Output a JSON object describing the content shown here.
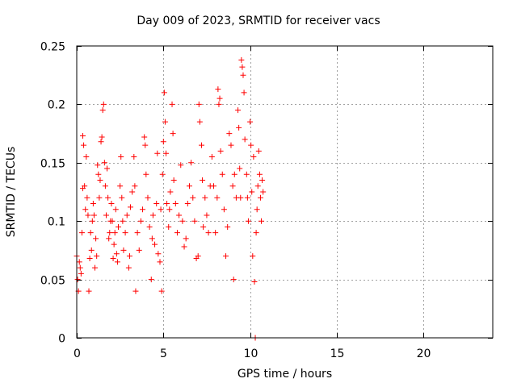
{
  "chart_data": {
    "type": "scatter",
    "title": "Day 009 of 2023, SRMTID for receiver vacs",
    "xlabel": "GPS time / hours",
    "ylabel": "SRMTID / TECUs",
    "xlim": [
      0,
      24
    ],
    "ylim": [
      0,
      0.25
    ],
    "xticks": [
      0,
      5,
      10,
      15,
      20
    ],
    "xtick_labels": [
      "0",
      "5",
      "10",
      "15",
      "20"
    ],
    "yticks": [
      0,
      0.05,
      0.1,
      0.15,
      0.2,
      0.25
    ],
    "ytick_labels": [
      "0",
      "0.05",
      "0.1",
      "0.15",
      "0.2",
      "0.25"
    ],
    "grid": true,
    "marker": "+",
    "series": [
      {
        "name": "SRMTID",
        "color": "#ff0000",
        "points": [
          [
            0.0,
            0.07
          ],
          [
            0.05,
            0.05
          ],
          [
            0.1,
            0.04
          ],
          [
            0.15,
            0.065
          ],
          [
            0.2,
            0.06
          ],
          [
            0.25,
            0.055
          ],
          [
            0.3,
            0.09
          ],
          [
            0.35,
            0.128
          ],
          [
            0.35,
            0.173
          ],
          [
            0.4,
            0.165
          ],
          [
            0.45,
            0.13
          ],
          [
            0.5,
            0.11
          ],
          [
            0.55,
            0.155
          ],
          [
            0.6,
            0.12
          ],
          [
            0.65,
            0.105
          ],
          [
            0.7,
            0.04
          ],
          [
            0.75,
            0.068
          ],
          [
            0.8,
            0.09
          ],
          [
            0.85,
            0.075
          ],
          [
            0.9,
            0.1
          ],
          [
            0.95,
            0.115
          ],
          [
            1.0,
            0.105
          ],
          [
            1.05,
            0.06
          ],
          [
            1.1,
            0.085
          ],
          [
            1.15,
            0.07
          ],
          [
            1.2,
            0.148
          ],
          [
            1.25,
            0.14
          ],
          [
            1.3,
            0.12
          ],
          [
            1.35,
            0.135
          ],
          [
            1.4,
            0.168
          ],
          [
            1.45,
            0.172
          ],
          [
            1.5,
            0.195
          ],
          [
            1.55,
            0.2
          ],
          [
            1.6,
            0.15
          ],
          [
            1.65,
            0.13
          ],
          [
            1.7,
            0.105
          ],
          [
            1.75,
            0.145
          ],
          [
            1.8,
            0.12
          ],
          [
            1.85,
            0.085
          ],
          [
            1.9,
            0.09
          ],
          [
            1.95,
            0.1
          ],
          [
            2.0,
            0.115
          ],
          [
            2.05,
            0.1
          ],
          [
            2.1,
            0.068
          ],
          [
            2.15,
            0.08
          ],
          [
            2.2,
            0.09
          ],
          [
            2.25,
            0.11
          ],
          [
            2.3,
            0.072
          ],
          [
            2.35,
            0.065
          ],
          [
            2.4,
            0.095
          ],
          [
            2.5,
            0.13
          ],
          [
            2.55,
            0.155
          ],
          [
            2.6,
            0.12
          ],
          [
            2.65,
            0.1
          ],
          [
            2.7,
            0.075
          ],
          [
            2.8,
            0.09
          ],
          [
            2.9,
            0.105
          ],
          [
            3.0,
            0.06
          ],
          [
            3.05,
            0.07
          ],
          [
            3.1,
            0.112
          ],
          [
            3.2,
            0.125
          ],
          [
            3.3,
            0.155
          ],
          [
            3.35,
            0.13
          ],
          [
            3.4,
            0.04
          ],
          [
            3.5,
            0.09
          ],
          [
            3.6,
            0.075
          ],
          [
            3.7,
            0.1
          ],
          [
            3.8,
            0.11
          ],
          [
            3.9,
            0.172
          ],
          [
            3.95,
            0.165
          ],
          [
            4.0,
            0.14
          ],
          [
            4.1,
            0.12
          ],
          [
            4.2,
            0.095
          ],
          [
            4.3,
            0.05
          ],
          [
            4.35,
            0.085
          ],
          [
            4.4,
            0.105
          ],
          [
            4.5,
            0.08
          ],
          [
            4.6,
            0.115
          ],
          [
            4.65,
            0.158
          ],
          [
            4.7,
            0.072
          ],
          [
            4.8,
            0.065
          ],
          [
            4.85,
            0.11
          ],
          [
            4.9,
            0.04
          ],
          [
            4.95,
            0.14
          ],
          [
            5.0,
            0.168
          ],
          [
            5.05,
            0.21
          ],
          [
            5.1,
            0.185
          ],
          [
            5.15,
            0.158
          ],
          [
            5.2,
            0.115
          ],
          [
            5.3,
            0.095
          ],
          [
            5.35,
            0.11
          ],
          [
            5.4,
            0.125
          ],
          [
            5.5,
            0.2
          ],
          [
            5.55,
            0.175
          ],
          [
            5.6,
            0.135
          ],
          [
            5.7,
            0.115
          ],
          [
            5.8,
            0.09
          ],
          [
            5.9,
            0.105
          ],
          [
            6.0,
            0.148
          ],
          [
            6.1,
            0.1
          ],
          [
            6.2,
            0.078
          ],
          [
            6.3,
            0.085
          ],
          [
            6.4,
            0.115
          ],
          [
            6.5,
            0.13
          ],
          [
            6.6,
            0.15
          ],
          [
            6.7,
            0.12
          ],
          [
            6.8,
            0.1
          ],
          [
            6.9,
            0.068
          ],
          [
            7.0,
            0.07
          ],
          [
            7.05,
            0.2
          ],
          [
            7.1,
            0.185
          ],
          [
            7.2,
            0.165
          ],
          [
            7.25,
            0.135
          ],
          [
            7.3,
            0.095
          ],
          [
            7.4,
            0.12
          ],
          [
            7.5,
            0.105
          ],
          [
            7.6,
            0.09
          ],
          [
            7.7,
            0.13
          ],
          [
            7.8,
            0.155
          ],
          [
            7.9,
            0.13
          ],
          [
            8.0,
            0.09
          ],
          [
            8.1,
            0.12
          ],
          [
            8.15,
            0.213
          ],
          [
            8.2,
            0.2
          ],
          [
            8.25,
            0.205
          ],
          [
            8.3,
            0.16
          ],
          [
            8.4,
            0.14
          ],
          [
            8.5,
            0.11
          ],
          [
            8.6,
            0.07
          ],
          [
            8.7,
            0.095
          ],
          [
            8.8,
            0.175
          ],
          [
            8.9,
            0.165
          ],
          [
            9.0,
            0.13
          ],
          [
            9.05,
            0.05
          ],
          [
            9.1,
            0.14
          ],
          [
            9.2,
            0.12
          ],
          [
            9.3,
            0.195
          ],
          [
            9.35,
            0.18
          ],
          [
            9.4,
            0.145
          ],
          [
            9.45,
            0.12
          ],
          [
            9.5,
            0.238
          ],
          [
            9.55,
            0.232
          ],
          [
            9.6,
            0.225
          ],
          [
            9.65,
            0.21
          ],
          [
            9.7,
            0.17
          ],
          [
            9.8,
            0.14
          ],
          [
            9.85,
            0.12
          ],
          [
            9.9,
            0.1
          ],
          [
            10.0,
            0.185
          ],
          [
            10.05,
            0.165
          ],
          [
            10.1,
            0.125
          ],
          [
            10.15,
            0.07
          ],
          [
            10.2,
            0.155
          ],
          [
            10.25,
            0.048
          ],
          [
            10.3,
            0.0
          ],
          [
            10.35,
            0.09
          ],
          [
            10.4,
            0.11
          ],
          [
            10.45,
            0.13
          ],
          [
            10.5,
            0.16
          ],
          [
            10.55,
            0.14
          ],
          [
            10.6,
            0.12
          ],
          [
            10.65,
            0.1
          ],
          [
            10.7,
            0.135
          ],
          [
            10.75,
            0.125
          ]
        ]
      }
    ]
  }
}
